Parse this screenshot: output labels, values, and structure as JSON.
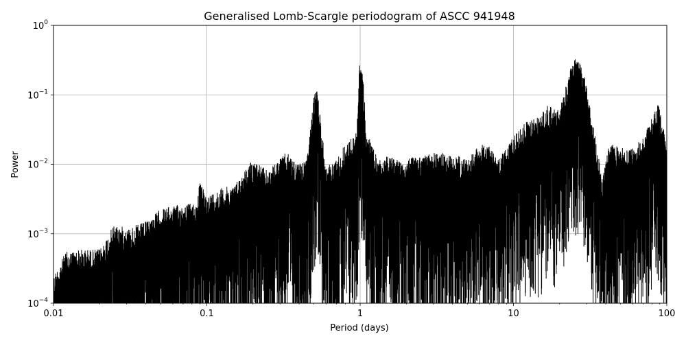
{
  "chart_data": {
    "type": "line",
    "title": "Generalised Lomb-Scargle periodogram of ASCC 941948",
    "xlabel": "Period (days)",
    "ylabel": "Power",
    "xscale": "log",
    "yscale": "log",
    "xlim": [
      0.01,
      100
    ],
    "ylim": [
      0.0001,
      1
    ],
    "grid": true,
    "x_ticks": [
      {
        "value": 0.01,
        "label": "0.01"
      },
      {
        "value": 0.1,
        "label": "0.1"
      },
      {
        "value": 1,
        "label": "1"
      },
      {
        "value": 10,
        "label": "10"
      },
      {
        "value": 100,
        "label": "100"
      }
    ],
    "y_ticks": [
      {
        "value": 0.0001,
        "base": "10",
        "exp": "−4"
      },
      {
        "value": 0.001,
        "base": "10",
        "exp": "−3"
      },
      {
        "value": 0.01,
        "base": "10",
        "exp": "−2"
      },
      {
        "value": 0.1,
        "base": "10",
        "exp": "−1"
      },
      {
        "value": 1,
        "base": "10",
        "exp": "0"
      }
    ],
    "line_color": "#000000",
    "series": [
      {
        "peaks": [
          {
            "x": 0.01,
            "y": 0.00025
          },
          {
            "x": 0.012,
            "y": 0.00055
          },
          {
            "x": 0.015,
            "y": 0.0006
          },
          {
            "x": 0.02,
            "y": 0.0006
          },
          {
            "x": 0.025,
            "y": 0.0014
          },
          {
            "x": 0.03,
            "y": 0.0012
          },
          {
            "x": 0.04,
            "y": 0.0015
          },
          {
            "x": 0.05,
            "y": 0.0023
          },
          {
            "x": 0.06,
            "y": 0.0025
          },
          {
            "x": 0.07,
            "y": 0.0027
          },
          {
            "x": 0.085,
            "y": 0.0028
          },
          {
            "x": 0.09,
            "y": 0.0055
          },
          {
            "x": 0.1,
            "y": 0.0035
          },
          {
            "x": 0.12,
            "y": 0.0045
          },
          {
            "x": 0.15,
            "y": 0.005
          },
          {
            "x": 0.2,
            "y": 0.012
          },
          {
            "x": 0.25,
            "y": 0.008
          },
          {
            "x": 0.33,
            "y": 0.015
          },
          {
            "x": 0.4,
            "y": 0.01
          },
          {
            "x": 0.45,
            "y": 0.012
          },
          {
            "x": 0.5,
            "y": 0.1
          },
          {
            "x": 0.52,
            "y": 0.15
          },
          {
            "x": 0.6,
            "y": 0.009
          },
          {
            "x": 0.7,
            "y": 0.012
          },
          {
            "x": 0.8,
            "y": 0.02
          },
          {
            "x": 0.9,
            "y": 0.025
          },
          {
            "x": 0.95,
            "y": 0.03
          },
          {
            "x": 0.99,
            "y": 0.28
          },
          {
            "x": 1.03,
            "y": 0.29
          },
          {
            "x": 1.1,
            "y": 0.03
          },
          {
            "x": 1.3,
            "y": 0.012
          },
          {
            "x": 1.5,
            "y": 0.013
          },
          {
            "x": 2,
            "y": 0.012
          },
          {
            "x": 3,
            "y": 0.015
          },
          {
            "x": 4,
            "y": 0.014
          },
          {
            "x": 5,
            "y": 0.012
          },
          {
            "x": 6,
            "y": 0.02
          },
          {
            "x": 7,
            "y": 0.018
          },
          {
            "x": 8,
            "y": 0.012
          },
          {
            "x": 10,
            "y": 0.025
          },
          {
            "x": 12,
            "y": 0.04
          },
          {
            "x": 15,
            "y": 0.05
          },
          {
            "x": 16.5,
            "y": 0.07
          },
          {
            "x": 20,
            "y": 0.06
          },
          {
            "x": 23.5,
            "y": 0.24
          },
          {
            "x": 26,
            "y": 0.38
          },
          {
            "x": 29,
            "y": 0.2
          },
          {
            "x": 34,
            "y": 0.027
          },
          {
            "x": 38,
            "y": 0.006
          },
          {
            "x": 42,
            "y": 0.02
          },
          {
            "x": 49,
            "y": 0.018
          },
          {
            "x": 57,
            "y": 0.016
          },
          {
            "x": 70,
            "y": 0.024
          },
          {
            "x": 88,
            "y": 0.075
          },
          {
            "x": 100,
            "y": 0.02
          }
        ]
      }
    ]
  }
}
